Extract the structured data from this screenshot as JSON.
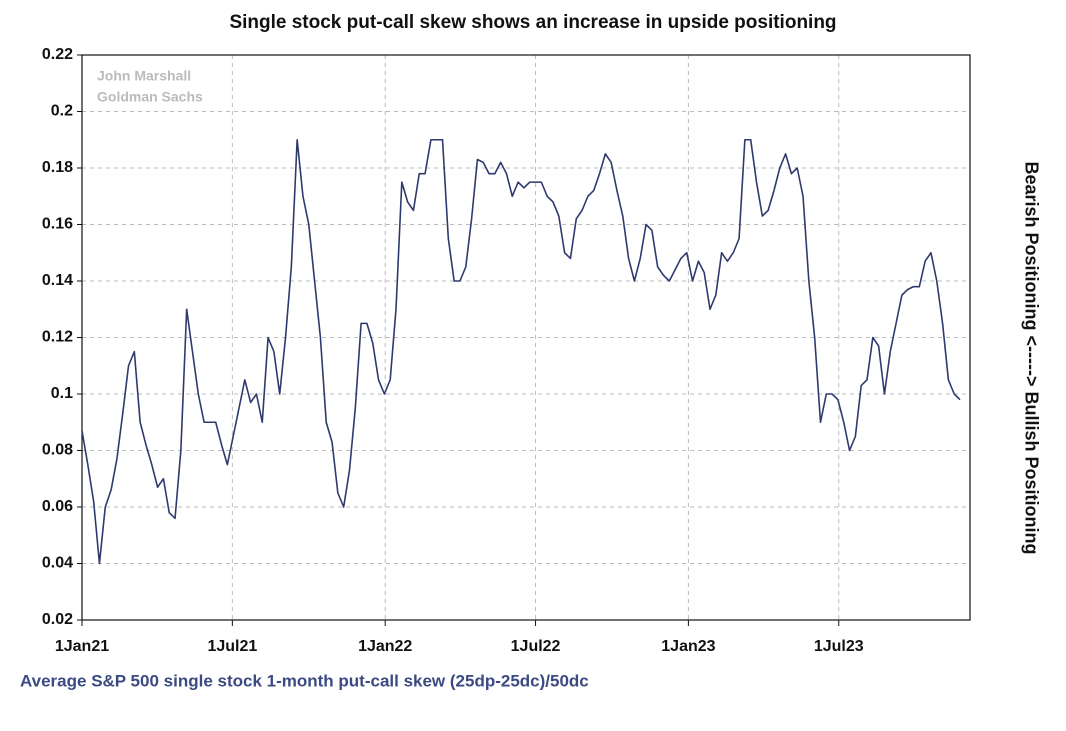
{
  "chart_data": {
    "type": "line",
    "title": "Single stock put-call skew shows an increase in upside positioning",
    "x_label": "Average S&P 500 single stock 1-month put-call skew (25dp-25dc)/50dc",
    "y2_label": "Bearish Positioning <-----> Bullish Positioning",
    "annotations": [
      "John Marshall",
      "Goldman Sachs"
    ],
    "color": "#2e3a6e",
    "grid": true,
    "xlim": [
      "2021-01-01",
      "2023-12-06"
    ],
    "xticks": [
      {
        "value": "2021-01-01",
        "label": "1Jan21"
      },
      {
        "value": "2021-07-01",
        "label": "1Jul21"
      },
      {
        "value": "2022-01-01",
        "label": "1Jan22"
      },
      {
        "value": "2022-07-01",
        "label": "1Jul22"
      },
      {
        "value": "2023-01-01",
        "label": "1Jan23"
      },
      {
        "value": "2023-07-01",
        "label": "1Jul23"
      }
    ],
    "ylim": [
      0.02,
      0.22
    ],
    "yticks": [
      0.02,
      0.04,
      0.06,
      0.08,
      0.1,
      0.12,
      0.14,
      0.16,
      0.18,
      0.2,
      0.22
    ],
    "x": [
      "2021-01-01",
      "2021-01-08",
      "2021-01-15",
      "2021-01-22",
      "2021-01-29",
      "2021-02-05",
      "2021-02-12",
      "2021-02-19",
      "2021-02-26",
      "2021-03-05",
      "2021-03-12",
      "2021-03-19",
      "2021-03-26",
      "2021-04-02",
      "2021-04-09",
      "2021-04-16",
      "2021-04-23",
      "2021-04-30",
      "2021-05-07",
      "2021-05-14",
      "2021-05-21",
      "2021-05-28",
      "2021-06-04",
      "2021-06-11",
      "2021-06-18",
      "2021-06-25",
      "2021-07-02",
      "2021-07-09",
      "2021-07-16",
      "2021-07-23",
      "2021-07-30",
      "2021-08-06",
      "2021-08-13",
      "2021-08-20",
      "2021-08-27",
      "2021-09-03",
      "2021-09-10",
      "2021-09-17",
      "2021-09-24",
      "2021-10-01",
      "2021-10-08",
      "2021-10-15",
      "2021-10-22",
      "2021-10-29",
      "2021-11-05",
      "2021-11-12",
      "2021-11-19",
      "2021-11-26",
      "2021-12-03",
      "2021-12-10",
      "2021-12-17",
      "2021-12-24",
      "2021-12-31",
      "2022-01-07",
      "2022-01-14",
      "2022-01-21",
      "2022-01-28",
      "2022-02-04",
      "2022-02-11",
      "2022-02-18",
      "2022-02-25",
      "2022-03-04",
      "2022-03-11",
      "2022-03-18",
      "2022-03-25",
      "2022-04-01",
      "2022-04-08",
      "2022-04-15",
      "2022-04-22",
      "2022-04-29",
      "2022-05-06",
      "2022-05-13",
      "2022-05-20",
      "2022-05-27",
      "2022-06-03",
      "2022-06-10",
      "2022-06-17",
      "2022-06-24",
      "2022-07-01",
      "2022-07-08",
      "2022-07-15",
      "2022-07-22",
      "2022-07-29",
      "2022-08-05",
      "2022-08-12",
      "2022-08-19",
      "2022-08-26",
      "2022-09-02",
      "2022-09-09",
      "2022-09-16",
      "2022-09-23",
      "2022-09-30",
      "2022-10-07",
      "2022-10-14",
      "2022-10-21",
      "2022-10-28",
      "2022-11-04",
      "2022-11-11",
      "2022-11-18",
      "2022-11-25",
      "2022-12-02",
      "2022-12-09",
      "2022-12-16",
      "2022-12-23",
      "2022-12-30",
      "2023-01-06",
      "2023-01-13",
      "2023-01-20",
      "2023-01-27",
      "2023-02-03",
      "2023-02-10",
      "2023-02-17",
      "2023-02-24",
      "2023-03-03",
      "2023-03-10",
      "2023-03-17",
      "2023-03-24",
      "2023-03-31",
      "2023-04-07",
      "2023-04-14",
      "2023-04-21",
      "2023-04-28",
      "2023-05-05",
      "2023-05-12",
      "2023-05-19",
      "2023-05-26",
      "2023-06-02",
      "2023-06-09",
      "2023-06-16",
      "2023-06-23",
      "2023-06-30",
      "2023-07-07",
      "2023-07-14",
      "2023-07-21",
      "2023-07-28",
      "2023-08-04",
      "2023-08-11",
      "2023-08-18",
      "2023-08-25",
      "2023-09-01",
      "2023-09-08",
      "2023-09-15",
      "2023-09-22",
      "2023-09-29",
      "2023-10-06",
      "2023-10-13",
      "2023-10-20",
      "2023-10-27",
      "2023-11-03",
      "2023-11-10",
      "2023-11-17",
      "2023-11-24"
    ],
    "values": [
      0.087,
      0.075,
      0.062,
      0.04,
      0.06,
      0.066,
      0.077,
      0.093,
      0.11,
      0.115,
      0.09,
      0.082,
      0.075,
      0.067,
      0.07,
      0.058,
      0.056,
      0.08,
      0.13,
      0.115,
      0.1,
      0.09,
      0.09,
      0.09,
      0.082,
      0.075,
      0.085,
      0.095,
      0.105,
      0.097,
      0.1,
      0.09,
      0.12,
      0.115,
      0.1,
      0.12,
      0.145,
      0.19,
      0.17,
      0.16,
      0.14,
      0.12,
      0.09,
      0.083,
      0.065,
      0.06,
      0.073,
      0.095,
      0.125,
      0.125,
      0.118,
      0.105,
      0.1,
      0.105,
      0.13,
      0.175,
      0.168,
      0.165,
      0.178,
      0.178,
      0.19,
      0.19,
      0.19,
      0.155,
      0.14,
      0.14,
      0.145,
      0.162,
      0.183,
      0.182,
      0.178,
      0.178,
      0.182,
      0.178,
      0.17,
      0.175,
      0.173,
      0.175,
      0.175,
      0.175,
      0.17,
      0.168,
      0.163,
      0.15,
      0.148,
      0.162,
      0.165,
      0.17,
      0.172,
      0.178,
      0.185,
      0.182,
      0.172,
      0.163,
      0.148,
      0.14,
      0.148,
      0.16,
      0.158,
      0.145,
      0.142,
      0.14,
      0.144,
      0.148,
      0.15,
      0.14,
      0.147,
      0.143,
      0.13,
      0.135,
      0.15,
      0.147,
      0.15,
      0.155,
      0.19,
      0.19,
      0.175,
      0.163,
      0.165,
      0.172,
      0.18,
      0.185,
      0.178,
      0.18,
      0.17,
      0.14,
      0.12,
      0.09,
      0.1,
      0.1,
      0.098,
      0.09,
      0.08,
      0.085,
      0.103,
      0.105,
      0.12,
      0.117,
      0.1,
      0.115,
      0.125,
      0.135,
      0.137,
      0.138,
      0.138,
      0.147,
      0.15,
      0.14,
      0.125,
      0.105,
      0.1,
      0.098
    ]
  }
}
